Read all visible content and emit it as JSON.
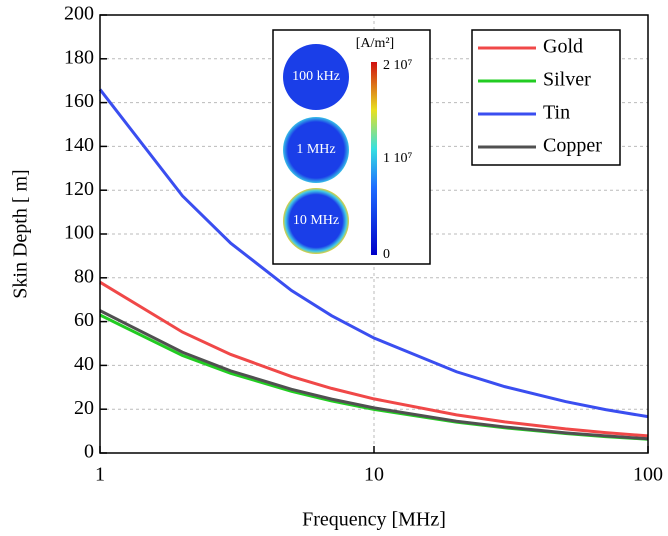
{
  "chart_data": {
    "type": "line",
    "x_label": "Frequency [MHz]",
    "y_label": "Skin Depth [ m]",
    "x": [
      1,
      2,
      3,
      5,
      7,
      10,
      20,
      30,
      50,
      70,
      100
    ],
    "series": [
      {
        "name": "Gold",
        "color": "#f04848",
        "values": [
          78,
          55.2,
          45.0,
          34.9,
          29.5,
          24.7,
          17.4,
          14.2,
          11.0,
          9.3,
          7.8
        ]
      },
      {
        "name": "Silver",
        "color": "#22cc22",
        "values": [
          63,
          44.5,
          36.4,
          28.2,
          23.8,
          19.9,
          14.1,
          11.5,
          8.9,
          7.5,
          6.3
        ]
      },
      {
        "name": "Tin",
        "color": "#3a4ef0",
        "values": [
          166,
          117.4,
          95.8,
          74.2,
          62.7,
          52.5,
          37.1,
          30.3,
          23.5,
          19.8,
          16.6
        ]
      },
      {
        "name": "Copper",
        "color": "#505050",
        "values": [
          65,
          46.0,
          37.5,
          29.1,
          24.6,
          20.6,
          14.5,
          11.9,
          9.2,
          7.8,
          6.5
        ]
      }
    ],
    "xlim": [
      1,
      100
    ],
    "xticks": [
      1,
      10,
      100
    ],
    "x_log": true,
    "ylim": [
      0,
      200
    ],
    "yticks": [
      0,
      20,
      40,
      60,
      80,
      100,
      120,
      140,
      160,
      180,
      200
    ],
    "grid": true,
    "legend": "upper right",
    "inset": {
      "unit_label": "[A/m²]",
      "scale_labels": [
        "2  10⁷",
        "1  10⁷",
        "0"
      ],
      "circle_labels": [
        "100 kHz",
        "1 MHz",
        "10 MHz"
      ]
    }
  }
}
